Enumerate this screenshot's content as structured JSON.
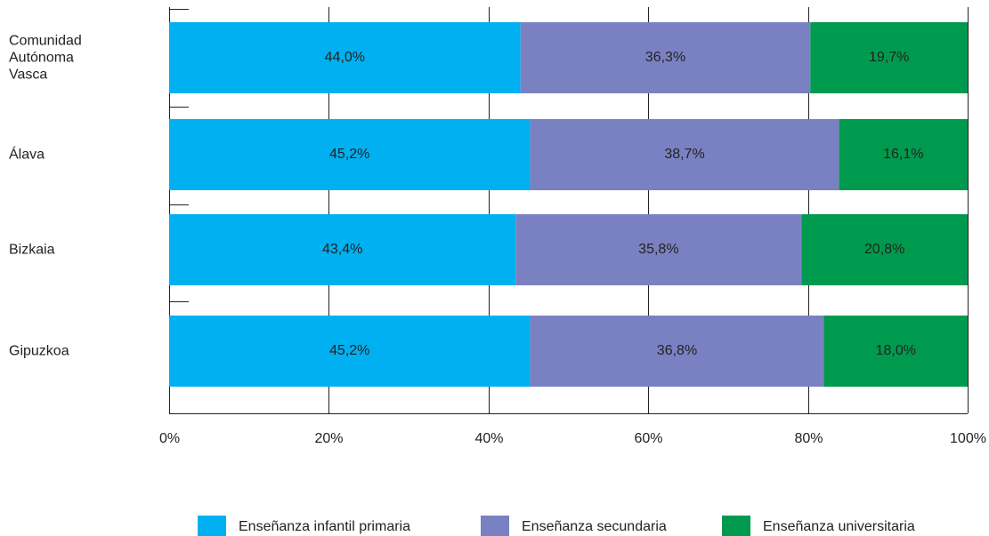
{
  "chart_data": {
    "type": "stacked-bar-horizontal",
    "categories": [
      "Comunidad Autónoma Vasca",
      "Álava",
      "Bizkaia",
      "Gipuzkoa"
    ],
    "series": [
      {
        "name": "Enseñanza infantil primaria",
        "color": "#00b0f0",
        "values": [
          44.0,
          45.2,
          43.4,
          45.2
        ],
        "value_labels": [
          "44,0%",
          "45,2%",
          "43,4%",
          "45,2%"
        ]
      },
      {
        "name": "Enseñanza secundaria",
        "color": "#7a81c2",
        "values": [
          36.3,
          38.7,
          35.8,
          36.8
        ],
        "value_labels": [
          "36,3%",
          "38,7%",
          "35,8%",
          "36,8%"
        ]
      },
      {
        "name": "Enseñanza universitaria",
        "color": "#009a4e",
        "values": [
          19.7,
          16.1,
          20.8,
          18.0
        ],
        "value_labels": [
          "19,7%",
          "16,1%",
          "20,8%",
          "18,0%"
        ]
      }
    ],
    "xlim": [
      0,
      100
    ],
    "xticks": [
      {
        "value": 0,
        "label": "0%"
      },
      {
        "value": 20,
        "label": "20%"
      },
      {
        "value": 40,
        "label": "40%"
      },
      {
        "value": 60,
        "label": "60%"
      },
      {
        "value": 80,
        "label": "80%"
      },
      {
        "value": 100,
        "label": "100%"
      }
    ],
    "grid": true
  }
}
